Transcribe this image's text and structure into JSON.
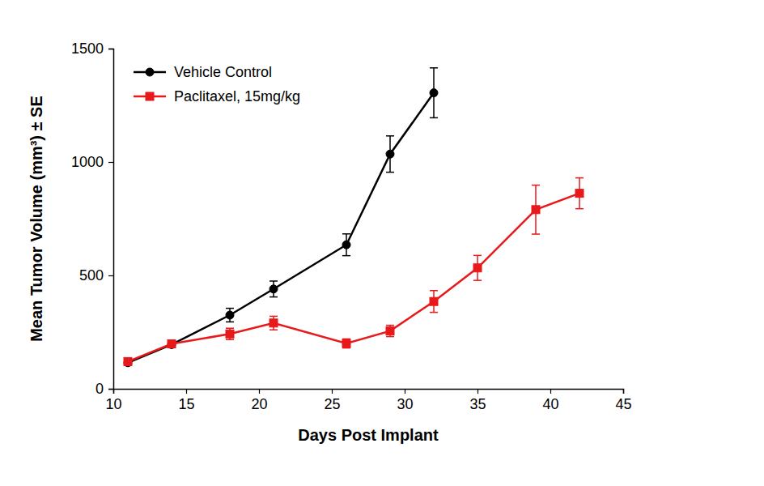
{
  "chart_data": {
    "type": "line",
    "x_label": "Days Post Implant",
    "y_label": "Mean Tumor Volume (mm³) ± SE",
    "xlim": [
      10,
      45
    ],
    "xticks": [
      10,
      15,
      20,
      25,
      30,
      35,
      40,
      45
    ],
    "ylim": [
      0,
      1500
    ],
    "yticks": [
      0,
      500,
      1000,
      1500
    ],
    "legend": "top-left",
    "series": [
      {
        "name": "Vehicle Control",
        "color": "#000000",
        "marker": "circle",
        "line_style": "solid",
        "x": [
          11,
          14,
          18,
          21,
          26,
          29,
          32
        ],
        "values": [
          115,
          195,
          325,
          440,
          635,
          1035,
          1305
        ],
        "errors": [
          10,
          10,
          30,
          35,
          48,
          80,
          110
        ]
      },
      {
        "name": "Paclitaxel, 15mg/kg",
        "color": "#e8191b",
        "marker": "square",
        "line_style": "solid",
        "x": [
          11,
          14,
          18,
          21,
          26,
          29,
          32,
          35,
          39,
          42
        ],
        "values": [
          120,
          198,
          242,
          290,
          200,
          255,
          385,
          533,
          790,
          862
        ],
        "errors": [
          10,
          10,
          25,
          30,
          20,
          25,
          48,
          55,
          108,
          68
        ]
      }
    ]
  }
}
